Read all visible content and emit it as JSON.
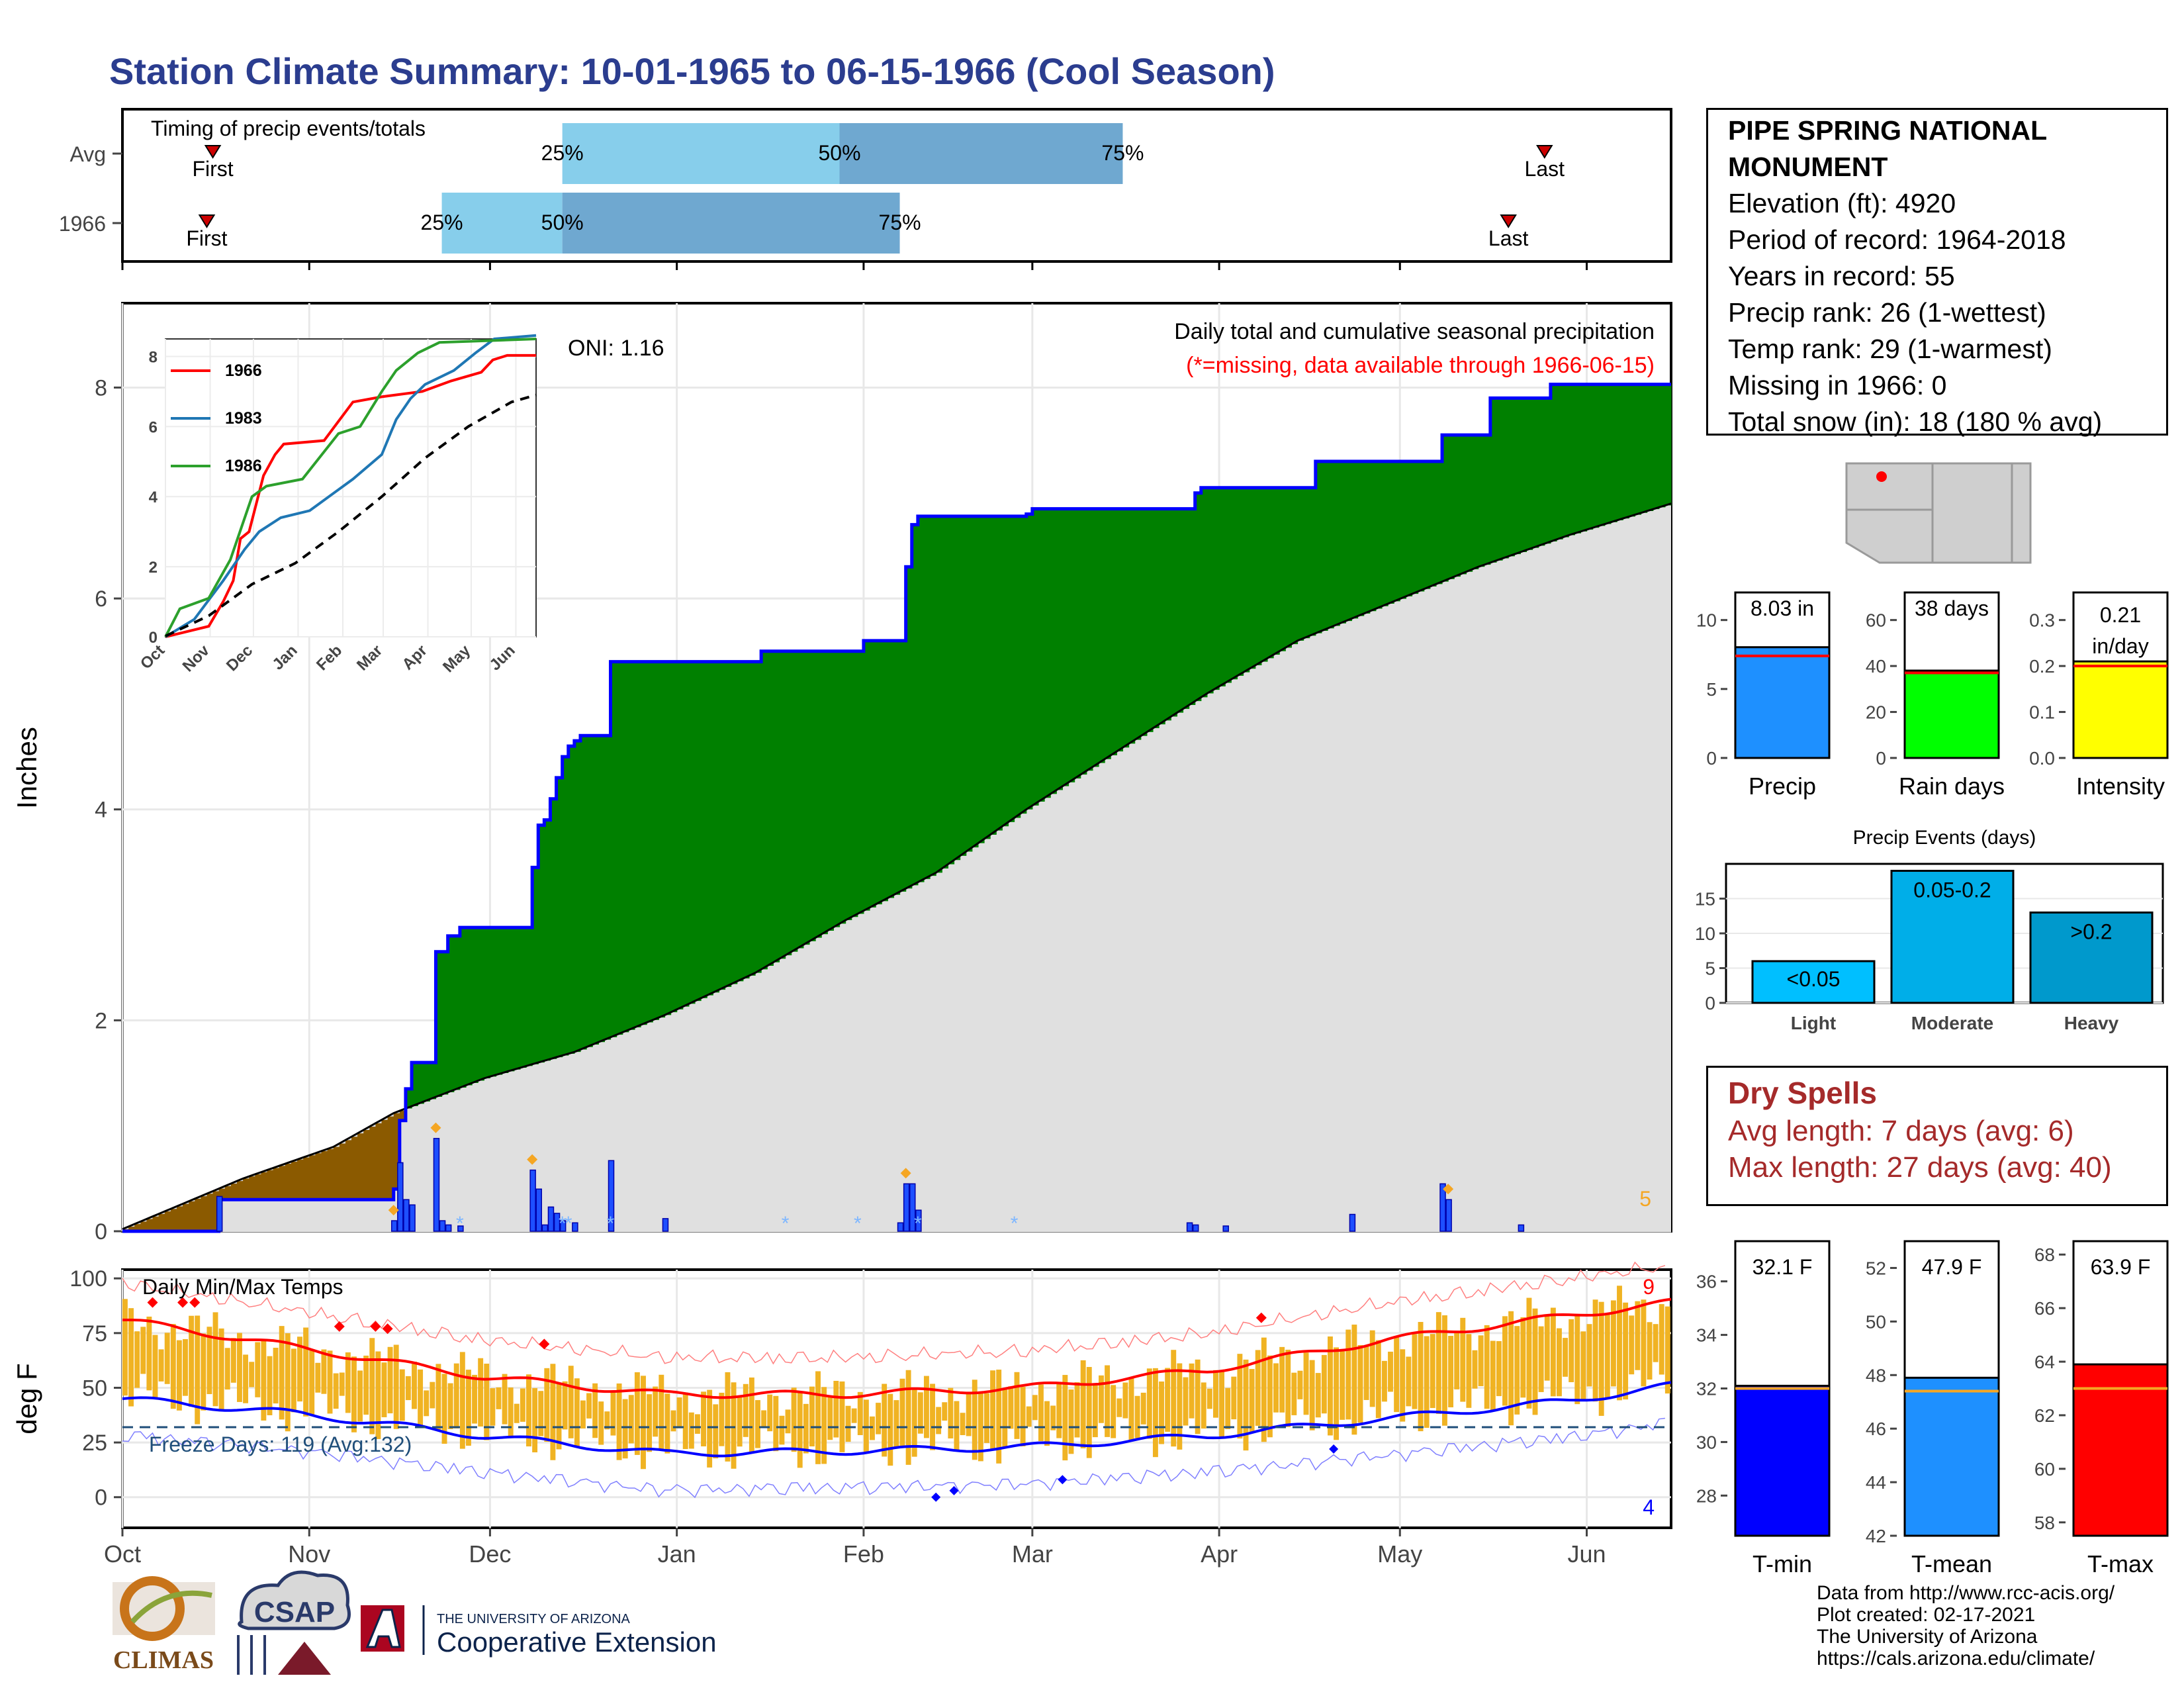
{
  "title": "Station Climate Summary: 10-01-1965 to 06-15-1966 (Cool Season)",
  "colors": {
    "title": "#2b3d8f",
    "accent_blue": "#0000ff",
    "green": "#008000",
    "brown": "#8b5a00",
    "gray": "#e0e0e0",
    "orange": "#f5a623",
    "red": "#ff0000",
    "dry": "#a52a2a"
  },
  "timing": {
    "label": "Timing of precip events/totals",
    "rows": [
      {
        "name": "Avg",
        "first_label": "First",
        "last_label": "Last",
        "p25_label": "25%",
        "p50_label": "50%",
        "p75_label": "75%"
      },
      {
        "name": "1966",
        "first_label": "First",
        "last_label": "Last",
        "p25_label": "25%",
        "p50_label": "50%",
        "p75_label": "75%"
      }
    ]
  },
  "precip": {
    "ylabel": "Inches",
    "caption": "Daily total and cumulative seasonal precipitation",
    "missing_note": "(*=missing, data available through 1966-06-15)",
    "oni": "ONI: 1.16",
    "count": "5",
    "yticks": [
      "0",
      "2",
      "4",
      "6",
      "8"
    ]
  },
  "inset": {
    "legend": [
      "1966",
      "1983",
      "1986"
    ],
    "yticks": [
      "0",
      "2",
      "4",
      "6",
      "8"
    ],
    "xticks": [
      "Oct",
      "Nov",
      "Dec",
      "Jan",
      "Feb",
      "Mar",
      "Apr",
      "May",
      "Jun"
    ]
  },
  "temps": {
    "label": "Daily Min/Max Temps",
    "ylabel": "deg F",
    "freeze": "Freeze Days: 119 (Avg:132)",
    "count_hot": "9",
    "count_cold": "4",
    "yticks": [
      "0",
      "25",
      "50",
      "75",
      "100"
    ]
  },
  "months": [
    "Oct",
    "Nov",
    "Dec",
    "Jan",
    "Feb",
    "Mar",
    "Apr",
    "May",
    "Jun"
  ],
  "info": {
    "name": "PIPE SPRING NATIONAL MONUMENT",
    "lines": [
      "Elevation (ft): 4920",
      "Period of record: 1964-2018",
      "Years in record: 55",
      "Precip rank: 26 (1-wettest)",
      "Temp rank: 29 (1-warmest)",
      "Missing in 1966: 0",
      "Total snow (in): 18 (180 % avg)"
    ]
  },
  "mini_bars": [
    {
      "label": "Precip",
      "value_text": "8.03 in",
      "value": 8.03,
      "avg": 7.4,
      "ymax": 12,
      "ticks": [
        "0",
        "5",
        "10"
      ],
      "color": "#1e90ff"
    },
    {
      "label": "Rain days",
      "value_text": "38 days",
      "value": 38,
      "avg": 37,
      "ymax": 72,
      "ticks": [
        "0",
        "20",
        "40",
        "60"
      ],
      "color": "#00ff00"
    },
    {
      "label": "Intensity",
      "value_text": "0.21 in/day",
      "value": 0.21,
      "avg": 0.2,
      "ymax": 0.36,
      "ticks": [
        "0.0",
        "0.1",
        "0.2",
        "0.3"
      ],
      "color": "#ffff00"
    }
  ],
  "events": {
    "title": "Precip Events (days)",
    "categories": [
      "Light",
      "Moderate",
      "Heavy"
    ],
    "labels": [
      "<0.05",
      "0.05-0.2",
      ">0.2"
    ],
    "values": [
      6,
      19,
      13
    ],
    "ticks": [
      "0",
      "5",
      "10",
      "15"
    ],
    "colors": [
      "#00bfff",
      "#00aee8",
      "#0099cc"
    ]
  },
  "dry_spells": {
    "title": "Dry Spells",
    "lines": [
      "Avg length: 7 days (avg: 6)",
      "Max length: 27 days (avg: 40)"
    ]
  },
  "temp_bars": [
    {
      "label": "T-min",
      "value_text": "32.1 F",
      "value": 32.1,
      "avg": 32.0,
      "ymin": 26.5,
      "ymax": 37.5,
      "ticks": [
        "28",
        "30",
        "32",
        "34",
        "36"
      ],
      "color": "#0000ff"
    },
    {
      "label": "T-mean",
      "value_text": "47.9 F",
      "value": 47.9,
      "avg": 47.4,
      "ymin": 42,
      "ymax": 53,
      "ticks": [
        "42",
        "44",
        "46",
        "48",
        "50",
        "52"
      ],
      "color": "#1e90ff"
    },
    {
      "label": "T-max",
      "value_text": "63.9 F",
      "value": 63.9,
      "avg": 63.0,
      "ymin": 57.5,
      "ymax": 68.5,
      "ticks": [
        "58",
        "60",
        "62",
        "64",
        "66",
        "68"
      ],
      "color": "#ff0000"
    }
  ],
  "credits": [
    "Data from http://www.rcc-acis.org/",
    "Plot created: 02-17-2021",
    "The University of Arizona",
    "https://cals.arizona.edu/climate/"
  ],
  "logos": {
    "climas": "CLIMAS",
    "csap": "CSAP",
    "ua_small": "THE UNIVERSITY OF ARIZONA",
    "coop": "Cooperative Extension"
  },
  "chart_data": [
    {
      "type": "bar",
      "title": "Timing of precip events/totals",
      "series": [
        {
          "name": "Avg",
          "p25": "Dec 13",
          "p50": "Jan 28",
          "p75": "Mar 16",
          "first": "Oct 16",
          "last": "May 25"
        },
        {
          "name": "1966",
          "p25": "Nov 23",
          "p50": "Dec 13",
          "p75": "Feb 07",
          "first": "Oct 15",
          "last": "May 19"
        }
      ]
    },
    {
      "type": "area",
      "title": "Daily total and cumulative seasonal precipitation",
      "ylabel": "Inches",
      "ylim": [
        0,
        8.8
      ],
      "x_range": [
        "1965-10-01",
        "1966-06-15"
      ],
      "cumulative_1966": [
        [
          0,
          0
        ],
        [
          15,
          0
        ],
        [
          16,
          0.3
        ],
        [
          44,
          0.3
        ],
        [
          45,
          0.4
        ],
        [
          46,
          1.05
        ],
        [
          47,
          1.35
        ],
        [
          48,
          1.6
        ],
        [
          51,
          1.6
        ],
        [
          52,
          2.65
        ],
        [
          54,
          2.8
        ],
        [
          56,
          2.88
        ],
        [
          67,
          2.88
        ],
        [
          68,
          3.45
        ],
        [
          69,
          3.85
        ],
        [
          70,
          3.9
        ],
        [
          71,
          4.1
        ],
        [
          72,
          4.3
        ],
        [
          73,
          4.5
        ],
        [
          74,
          4.6
        ],
        [
          75,
          4.65
        ],
        [
          76,
          4.7
        ],
        [
          80,
          4.7
        ],
        [
          81,
          5.4
        ],
        [
          106,
          5.5
        ],
        [
          122,
          5.5
        ],
        [
          123,
          5.6
        ],
        [
          129,
          5.6
        ],
        [
          130,
          6.3
        ],
        [
          131,
          6.7
        ],
        [
          132,
          6.78
        ],
        [
          150,
          6.8
        ],
        [
          151,
          6.85
        ],
        [
          177,
          6.85
        ],
        [
          178,
          7.0
        ],
        [
          179,
          7.05
        ],
        [
          197,
          7.05
        ],
        [
          198,
          7.3
        ],
        [
          218,
          7.3
        ],
        [
          219,
          7.55
        ],
        [
          226,
          7.55
        ],
        [
          227,
          7.9
        ],
        [
          236,
          7.9
        ],
        [
          237,
          8.03
        ],
        [
          257,
          8.03
        ]
      ],
      "cumulative_avg": [
        [
          0,
          0.02
        ],
        [
          20,
          0.5
        ],
        [
          35,
          0.8
        ],
        [
          45,
          1.12
        ],
        [
          60,
          1.45
        ],
        [
          75,
          1.7
        ],
        [
          90,
          2.05
        ],
        [
          105,
          2.45
        ],
        [
          120,
          2.95
        ],
        [
          135,
          3.4
        ],
        [
          150,
          4.0
        ],
        [
          165,
          4.55
        ],
        [
          180,
          5.1
        ],
        [
          195,
          5.6
        ],
        [
          210,
          5.95
        ],
        [
          225,
          6.3
        ],
        [
          240,
          6.6
        ],
        [
          257,
          6.9
        ]
      ],
      "daily_bars": [
        [
          16,
          0.33
        ],
        [
          45,
          0.1
        ],
        [
          46,
          0.65
        ],
        [
          47,
          0.3
        ],
        [
          48,
          0.25
        ],
        [
          52,
          0.88
        ],
        [
          53,
          0.1
        ],
        [
          54,
          0.06
        ],
        [
          56,
          0.05
        ],
        [
          68,
          0.58
        ],
        [
          69,
          0.4
        ],
        [
          70,
          0.06
        ],
        [
          71,
          0.23
        ],
        [
          72,
          0.17
        ],
        [
          73,
          0.1
        ],
        [
          75,
          0.08
        ],
        [
          81,
          0.67
        ],
        [
          90,
          0.12
        ],
        [
          129,
          0.08
        ],
        [
          130,
          0.45
        ],
        [
          131,
          0.45
        ],
        [
          132,
          0.2
        ],
        [
          177,
          0.08
        ],
        [
          178,
          0.06
        ],
        [
          183,
          0.05
        ],
        [
          204,
          0.16
        ],
        [
          219,
          0.45
        ],
        [
          220,
          0.3
        ],
        [
          232,
          0.06
        ]
      ],
      "snow_days": [
        56,
        73,
        74,
        81,
        110,
        122,
        132,
        148
      ],
      "record_days": [
        45,
        52,
        68,
        130,
        220
      ]
    },
    {
      "type": "line",
      "title": "Cumulative precipitation (inset)",
      "ylim": [
        0,
        8.5
      ],
      "series": [
        {
          "name": "1966",
          "values": [
            [
              0,
              0
            ],
            [
              30,
              0.3
            ],
            [
              40,
              1.0
            ],
            [
              47,
              1.6
            ],
            [
              52,
              2.8
            ],
            [
              58,
              3.0
            ],
            [
              68,
              4.6
            ],
            [
              76,
              5.2
            ],
            [
              82,
              5.5
            ],
            [
              110,
              5.6
            ],
            [
              130,
              6.7
            ],
            [
              150,
              6.85
            ],
            [
              178,
              7.0
            ],
            [
              198,
              7.3
            ],
            [
              219,
              7.55
            ],
            [
              227,
              7.9
            ],
            [
              237,
              8.03
            ],
            [
              257,
              8.03
            ]
          ]
        },
        {
          "name": "1983",
          "values": [
            [
              0,
              0
            ],
            [
              20,
              0.5
            ],
            [
              40,
              1.6
            ],
            [
              55,
              2.5
            ],
            [
              65,
              3.0
            ],
            [
              80,
              3.4
            ],
            [
              100,
              3.6
            ],
            [
              130,
              4.5
            ],
            [
              150,
              5.2
            ],
            [
              160,
              6.2
            ],
            [
              170,
              6.8
            ],
            [
              180,
              7.2
            ],
            [
              200,
              7.6
            ],
            [
              215,
              8.1
            ],
            [
              228,
              8.5
            ],
            [
              257,
              8.6
            ]
          ]
        },
        {
          "name": "1986",
          "values": [
            [
              0,
              0
            ],
            [
              10,
              0.8
            ],
            [
              30,
              1.1
            ],
            [
              45,
              2.2
            ],
            [
              60,
              4.0
            ],
            [
              70,
              4.3
            ],
            [
              95,
              4.5
            ],
            [
              120,
              5.8
            ],
            [
              135,
              6.0
            ],
            [
              150,
              7.0
            ],
            [
              160,
              7.6
            ],
            [
              175,
              8.1
            ],
            [
              190,
              8.4
            ],
            [
              257,
              8.5
            ]
          ]
        },
        {
          "name": "",
          "values": [
            [
              0,
              0.02
            ],
            [
              30,
              0.6
            ],
            [
              60,
              1.5
            ],
            [
              90,
              2.1
            ],
            [
              120,
              3.0
            ],
            [
              150,
              4.0
            ],
            [
              180,
              5.1
            ],
            [
              210,
              6.0
            ],
            [
              240,
              6.7
            ],
            [
              257,
              6.9
            ]
          ]
        }
      ]
    },
    {
      "type": "bar",
      "title": "Daily Min/Max Temps",
      "ylabel": "deg F",
      "ylim": [
        -14,
        104
      ],
      "max_mean": [
        [
          0,
          81
        ],
        [
          30,
          68
        ],
        [
          60,
          55
        ],
        [
          90,
          47
        ],
        [
          120,
          47
        ],
        [
          150,
          50
        ],
        [
          180,
          58
        ],
        [
          210,
          72
        ],
        [
          240,
          83
        ],
        [
          257,
          89
        ]
      ],
      "min_mean": [
        [
          0,
          45
        ],
        [
          30,
          38
        ],
        [
          60,
          28
        ],
        [
          90,
          20
        ],
        [
          120,
          21
        ],
        [
          150,
          23
        ],
        [
          180,
          28
        ],
        [
          210,
          36
        ],
        [
          240,
          44
        ],
        [
          257,
          51
        ]
      ],
      "freeze_line": 32,
      "freeze_days": 119,
      "freeze_days_avg": 132
    },
    {
      "type": "bar",
      "title": "Precip Events (days)",
      "categories": [
        "Light",
        "Moderate",
        "Heavy"
      ],
      "values": [
        6,
        19,
        13
      ]
    },
    {
      "type": "bar",
      "title": "Season summary",
      "categories": [
        "Precip",
        "Rain days",
        "Intensity",
        "T-min",
        "T-mean",
        "T-max"
      ],
      "values": [
        8.03,
        38,
        0.21,
        32.1,
        47.9,
        63.9
      ]
    }
  ]
}
